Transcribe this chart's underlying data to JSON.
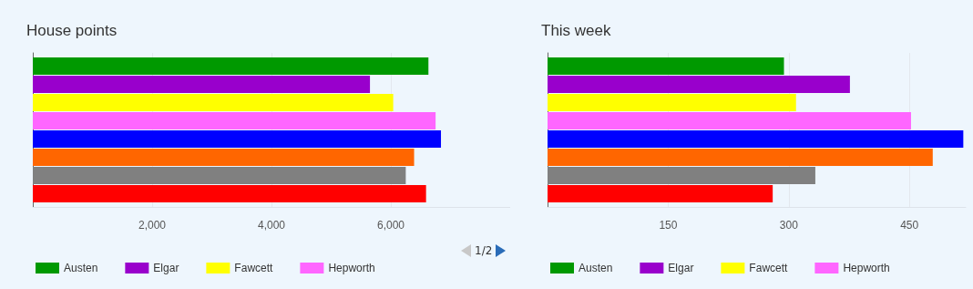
{
  "chart_data": [
    {
      "type": "bar",
      "title": "House points",
      "orientation": "horizontal",
      "categories": [
        null
      ],
      "xlim": [
        0,
        8000
      ],
      "xticks": [
        {
          "value": 2000,
          "label": "2,000"
        },
        {
          "value": 4000,
          "label": "4,000"
        },
        {
          "value": 6000,
          "label": "6,000"
        }
      ],
      "grid": "x",
      "legend": "bottom left",
      "annotations": [
        "1/2"
      ],
      "series": [
        {
          "name": "Austen",
          "color": "#009900",
          "values": [
            6630
          ]
        },
        {
          "name": "Elgar",
          "color": "#9900cc",
          "values": [
            5650
          ]
        },
        {
          "name": "Fawcett",
          "color": "#ffff00",
          "values": [
            6040
          ]
        },
        {
          "name": "Hepworth",
          "color": "#ff66ff",
          "values": [
            6750
          ]
        },
        {
          "color": "#0000ff",
          "values": [
            6840
          ]
        },
        {
          "color": "#ff6600",
          "values": [
            6390
          ]
        },
        {
          "color": "#808080",
          "values": [
            6250
          ]
        },
        {
          "color": "#ff0000",
          "values": [
            6590
          ]
        }
      ]
    },
    {
      "type": "bar",
      "title": "This week",
      "orientation": "horizontal",
      "categories": [
        null
      ],
      "xlim": [
        0,
        520
      ],
      "xticks": [
        150,
        300,
        450
      ],
      "grid": "x",
      "legend": "bottom left",
      "series": [
        {
          "name": "Austen",
          "color": "#009900",
          "values": [
            294
          ]
        },
        {
          "name": "Elgar",
          "color": "#9900cc",
          "values": [
            376
          ]
        },
        {
          "name": "Fawcett",
          "color": "#ffff00",
          "values": [
            309
          ]
        },
        {
          "name": "Hepworth",
          "color": "#ff66ff",
          "values": [
            452
          ]
        },
        {
          "color": "#0000ff",
          "values": [
            517
          ]
        },
        {
          "color": "#ff6600",
          "values": [
            479
          ]
        },
        {
          "color": "#808080",
          "values": [
            333
          ]
        },
        {
          "color": "#ff0000",
          "values": [
            280
          ]
        }
      ]
    }
  ]
}
